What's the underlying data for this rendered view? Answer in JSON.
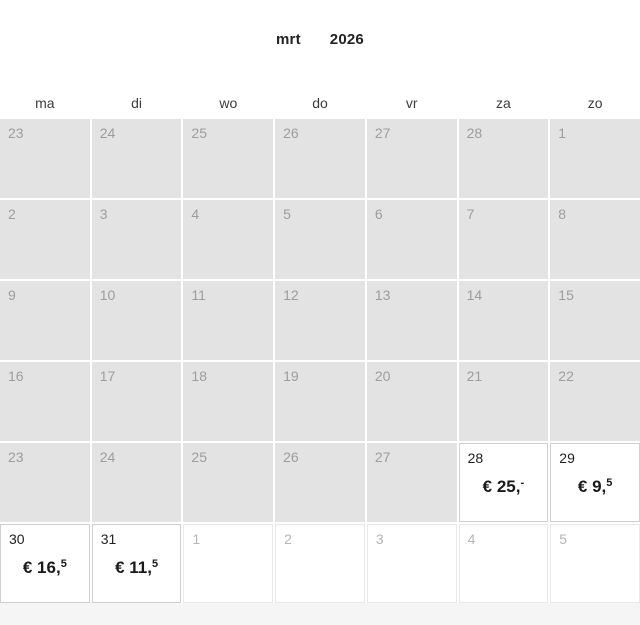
{
  "header": {
    "month": "mrt",
    "year": "2026"
  },
  "weekdays": [
    "ma",
    "di",
    "wo",
    "do",
    "vr",
    "za",
    "zo"
  ],
  "colors": {
    "disabled_cell_bg": "#e4e3e3",
    "disabled_day_text": "#9d9d9d",
    "day_text": "#1f1f1f",
    "other_day_text": "#b6b6b6",
    "available_border": "#cfcfcf",
    "other_border": "#e9e9e9",
    "price_text": "#1a1a1a",
    "footer_bg": "#f5f5f5"
  },
  "weeks": [
    {
      "days": [
        {
          "day": "23",
          "state": "disabled"
        },
        {
          "day": "24",
          "state": "disabled"
        },
        {
          "day": "25",
          "state": "disabled"
        },
        {
          "day": "26",
          "state": "disabled"
        },
        {
          "day": "27",
          "state": "disabled"
        },
        {
          "day": "28",
          "state": "disabled"
        },
        {
          "day": "1",
          "state": "disabled"
        }
      ]
    },
    {
      "days": [
        {
          "day": "2",
          "state": "disabled"
        },
        {
          "day": "3",
          "state": "disabled"
        },
        {
          "day": "4",
          "state": "disabled"
        },
        {
          "day": "5",
          "state": "disabled"
        },
        {
          "day": "6",
          "state": "disabled"
        },
        {
          "day": "7",
          "state": "disabled"
        },
        {
          "day": "8",
          "state": "disabled"
        }
      ]
    },
    {
      "days": [
        {
          "day": "9",
          "state": "disabled"
        },
        {
          "day": "10",
          "state": "disabled"
        },
        {
          "day": "11",
          "state": "disabled"
        },
        {
          "day": "12",
          "state": "disabled"
        },
        {
          "day": "13",
          "state": "disabled"
        },
        {
          "day": "14",
          "state": "disabled"
        },
        {
          "day": "15",
          "state": "disabled"
        }
      ]
    },
    {
      "days": [
        {
          "day": "16",
          "state": "disabled"
        },
        {
          "day": "17",
          "state": "disabled"
        },
        {
          "day": "18",
          "state": "disabled"
        },
        {
          "day": "19",
          "state": "disabled"
        },
        {
          "day": "20",
          "state": "disabled"
        },
        {
          "day": "21",
          "state": "disabled"
        },
        {
          "day": "22",
          "state": "disabled"
        }
      ]
    },
    {
      "days": [
        {
          "day": "23",
          "state": "disabled"
        },
        {
          "day": "24",
          "state": "disabled"
        },
        {
          "day": "25",
          "state": "disabled"
        },
        {
          "day": "26",
          "state": "disabled"
        },
        {
          "day": "27",
          "state": "disabled"
        },
        {
          "day": "28",
          "state": "available",
          "price_main": "€ 25,",
          "price_sup": "-"
        },
        {
          "day": "29",
          "state": "available",
          "price_main": "€ 9,",
          "price_sup": "5"
        }
      ]
    },
    {
      "days": [
        {
          "day": "30",
          "state": "available",
          "price_main": "€ 16,",
          "price_sup": "5"
        },
        {
          "day": "31",
          "state": "available",
          "price_main": "€ 11,",
          "price_sup": "5"
        },
        {
          "day": "1",
          "state": "other"
        },
        {
          "day": "2",
          "state": "other"
        },
        {
          "day": "3",
          "state": "other"
        },
        {
          "day": "4",
          "state": "other"
        },
        {
          "day": "5",
          "state": "other"
        }
      ]
    }
  ]
}
